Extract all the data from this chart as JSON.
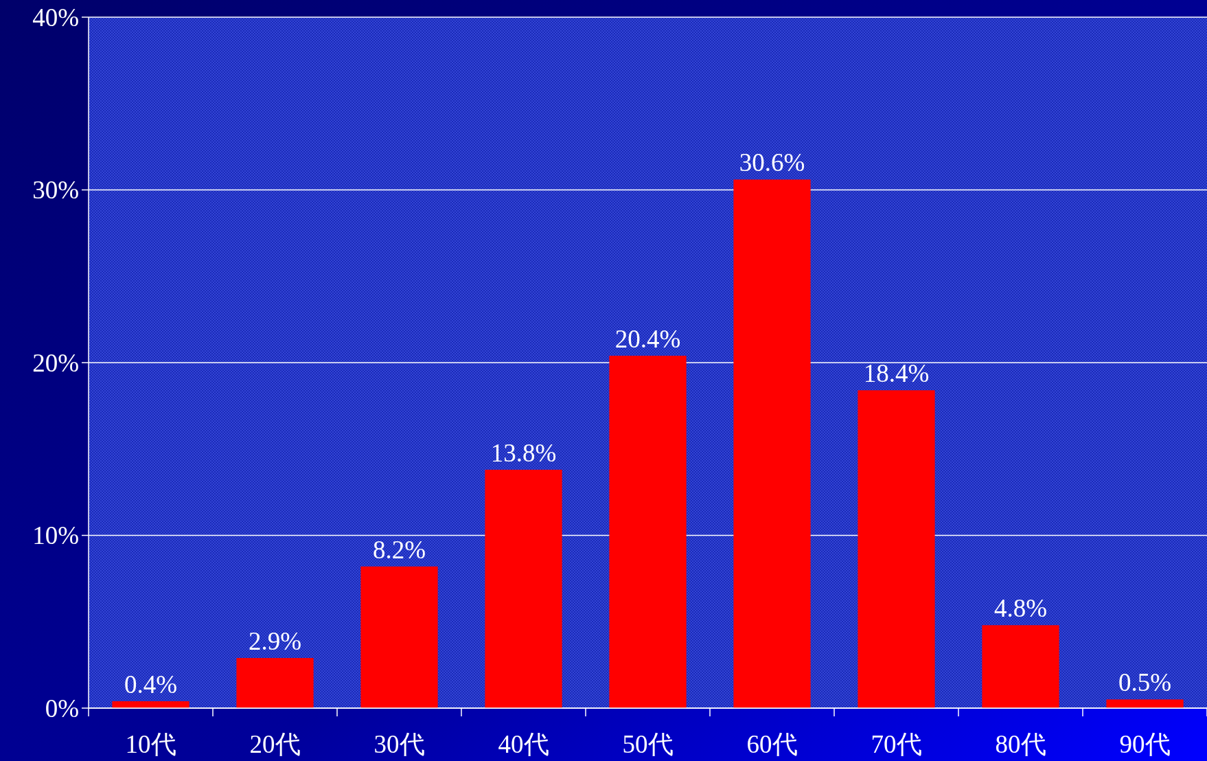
{
  "chart_data": {
    "type": "bar",
    "categories": [
      "10代",
      "20代",
      "30代",
      "40代",
      "50代",
      "60代",
      "70代",
      "80代",
      "90代"
    ],
    "values": [
      0.4,
      2.9,
      8.2,
      13.8,
      20.4,
      30.6,
      18.4,
      4.8,
      0.5
    ],
    "value_labels": [
      "0.4%",
      "2.9%",
      "8.2%",
      "13.8%",
      "20.4%",
      "30.6%",
      "18.4%",
      "4.8%",
      "0.5%"
    ],
    "color": "#ff0000",
    "ylim": [
      0,
      40
    ],
    "yticks": [
      {
        "value": 0,
        "label": "0%"
      },
      {
        "value": 10,
        "label": "10%"
      },
      {
        "value": 20,
        "label": "20%"
      },
      {
        "value": 30,
        "label": "30%"
      },
      {
        "value": 40,
        "label": "40%"
      }
    ],
    "grid": "y"
  }
}
